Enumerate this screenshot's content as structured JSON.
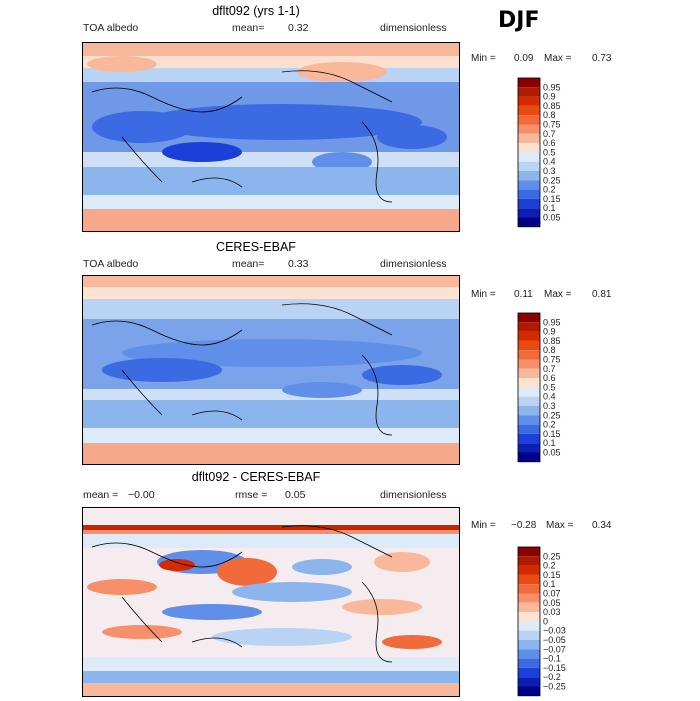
{
  "season": "DJF",
  "panels": [
    {
      "title": "dflt092 (yrs 1-1)",
      "left_label": "TOA albedo",
      "center_label": "mean=",
      "center_value": "0.32",
      "right_label": "dimensionless",
      "min_label": "Min =",
      "min_value": "0.09",
      "max_label": "Max =",
      "max_value": "0.73"
    },
    {
      "title": "CERES-EBAF",
      "left_label": "TOA albedo",
      "center_label": "mean=",
      "center_value": "0.33",
      "right_label": "dimensionless",
      "min_label": "Min =",
      "min_value": "0.11",
      "max_label": "Max =",
      "max_value": "0.81"
    },
    {
      "title": "dflt092 - CERES-EBAF",
      "left_label": "mean =",
      "left_value": "−0.00",
      "center_label": "rmse =",
      "center_value": "0.05",
      "right_label": "dimensionless",
      "min_label": "Min =",
      "min_value": "−0.28",
      "max_label": "Max =",
      "max_value": "0.34"
    }
  ],
  "chart_data": [
    {
      "type": "heatmap",
      "title": "dflt092 (yrs 1-1)",
      "colorbar_levels": [
        "0.95",
        "0.9",
        "0.85",
        "0.8",
        "0.75",
        "0.7",
        "0.6",
        "0.5",
        "0.4",
        "0.3",
        "0.25",
        "0.2",
        "0.15",
        "0.1",
        "0.05"
      ],
      "colorbar_colors": [
        "#8b0000",
        "#b01a00",
        "#d42a00",
        "#e84a12",
        "#f26a3a",
        "#f7906a",
        "#f9b89a",
        "#fbe3d3",
        "#ddeaf8",
        "#b8d3f3",
        "#8cb5ee",
        "#5f8fe8",
        "#3c6ae3",
        "#1c3fd8",
        "#0a1fb4",
        "#00008b"
      ],
      "min": 0.09,
      "max": 0.73
    },
    {
      "type": "heatmap",
      "title": "CERES-EBAF",
      "colorbar_levels": [
        "0.95",
        "0.9",
        "0.85",
        "0.8",
        "0.75",
        "0.7",
        "0.6",
        "0.5",
        "0.4",
        "0.3",
        "0.25",
        "0.2",
        "0.15",
        "0.1",
        "0.05"
      ],
      "colorbar_colors": [
        "#8b0000",
        "#b01a00",
        "#d42a00",
        "#e84a12",
        "#f26a3a",
        "#f7906a",
        "#f9b89a",
        "#fbe3d3",
        "#ddeaf8",
        "#b8d3f3",
        "#8cb5ee",
        "#5f8fe8",
        "#3c6ae3",
        "#1c3fd8",
        "#0a1fb4",
        "#00008b"
      ],
      "min": 0.11,
      "max": 0.81
    },
    {
      "type": "heatmap",
      "title": "dflt092 - CERES-EBAF",
      "colorbar_levels": [
        "0.25",
        "0.2",
        "0.15",
        "0.1",
        "0.07",
        "0.05",
        "0.03",
        "0",
        "−0.03",
        "−0.05",
        "−0.07",
        "−0.1",
        "−0.15",
        "−0.2",
        "−0.25"
      ],
      "colorbar_colors": [
        "#8b0000",
        "#b01a00",
        "#d42a00",
        "#e84a12",
        "#f26a3a",
        "#f7906a",
        "#f9b89a",
        "#fbe3d3",
        "#ddeaf8",
        "#b8d3f3",
        "#8cb5ee",
        "#5f8fe8",
        "#3c6ae3",
        "#1c3fd8",
        "#0a1fb4",
        "#00008b"
      ],
      "min": -0.28,
      "max": 0.34
    }
  ]
}
